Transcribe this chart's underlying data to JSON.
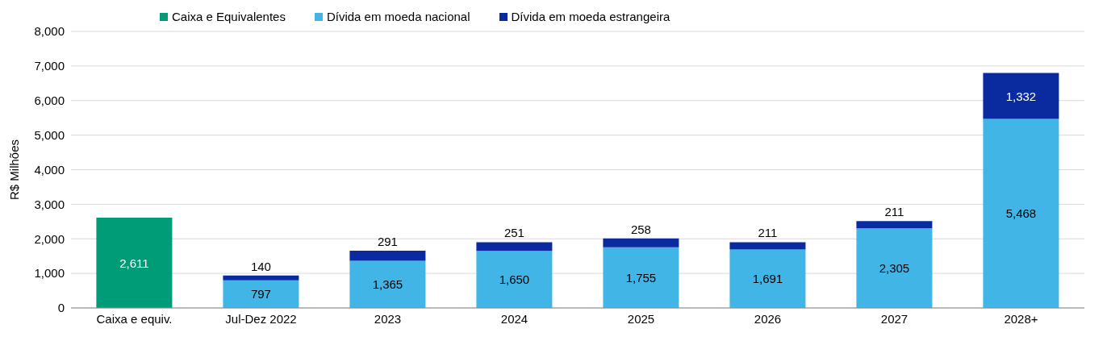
{
  "chart_data": {
    "type": "bar",
    "stacked": true,
    "ylabel": "R$ Milhões",
    "categories": [
      "Caixa e equiv.",
      "Jul-Dez 2022",
      "2023",
      "2024",
      "2025",
      "2026",
      "2027",
      "2028+"
    ],
    "series": [
      {
        "name": "Caixa e Equivalentes",
        "color": "#009b77",
        "values": [
          2611,
          null,
          null,
          null,
          null,
          null,
          null,
          null
        ],
        "value_labels": [
          "2,611",
          null,
          null,
          null,
          null,
          null,
          null,
          null
        ]
      },
      {
        "name": "Dívida em moeda nacional",
        "color": "#41b5e6",
        "values": [
          null,
          797,
          1365,
          1650,
          1755,
          1691,
          2305,
          5468
        ],
        "value_labels": [
          null,
          "797",
          "1,365",
          "1,650",
          "1,755",
          "1,691",
          "2,305",
          "5,468"
        ]
      },
      {
        "name": "Dívida em moeda estrangeira",
        "color": "#0a2ba0",
        "values": [
          null,
          140,
          291,
          251,
          258,
          211,
          211,
          1332
        ],
        "value_labels": [
          null,
          "140",
          "291",
          "251",
          "258",
          "211",
          "211",
          "1,332"
        ]
      }
    ],
    "ylim": [
      0,
      8000
    ],
    "yticks": [
      {
        "value": 0,
        "label": "0"
      },
      {
        "value": 1000,
        "label": "1,000"
      },
      {
        "value": 2000,
        "label": "2,000"
      },
      {
        "value": 3000,
        "label": "3,000"
      },
      {
        "value": 4000,
        "label": "4,000"
      },
      {
        "value": 5000,
        "label": "5,000"
      },
      {
        "value": 6000,
        "label": "6,000"
      },
      {
        "value": 7000,
        "label": "7,000"
      },
      {
        "value": 8000,
        "label": "8,000"
      }
    ],
    "grid": "y",
    "legend": "top left"
  }
}
